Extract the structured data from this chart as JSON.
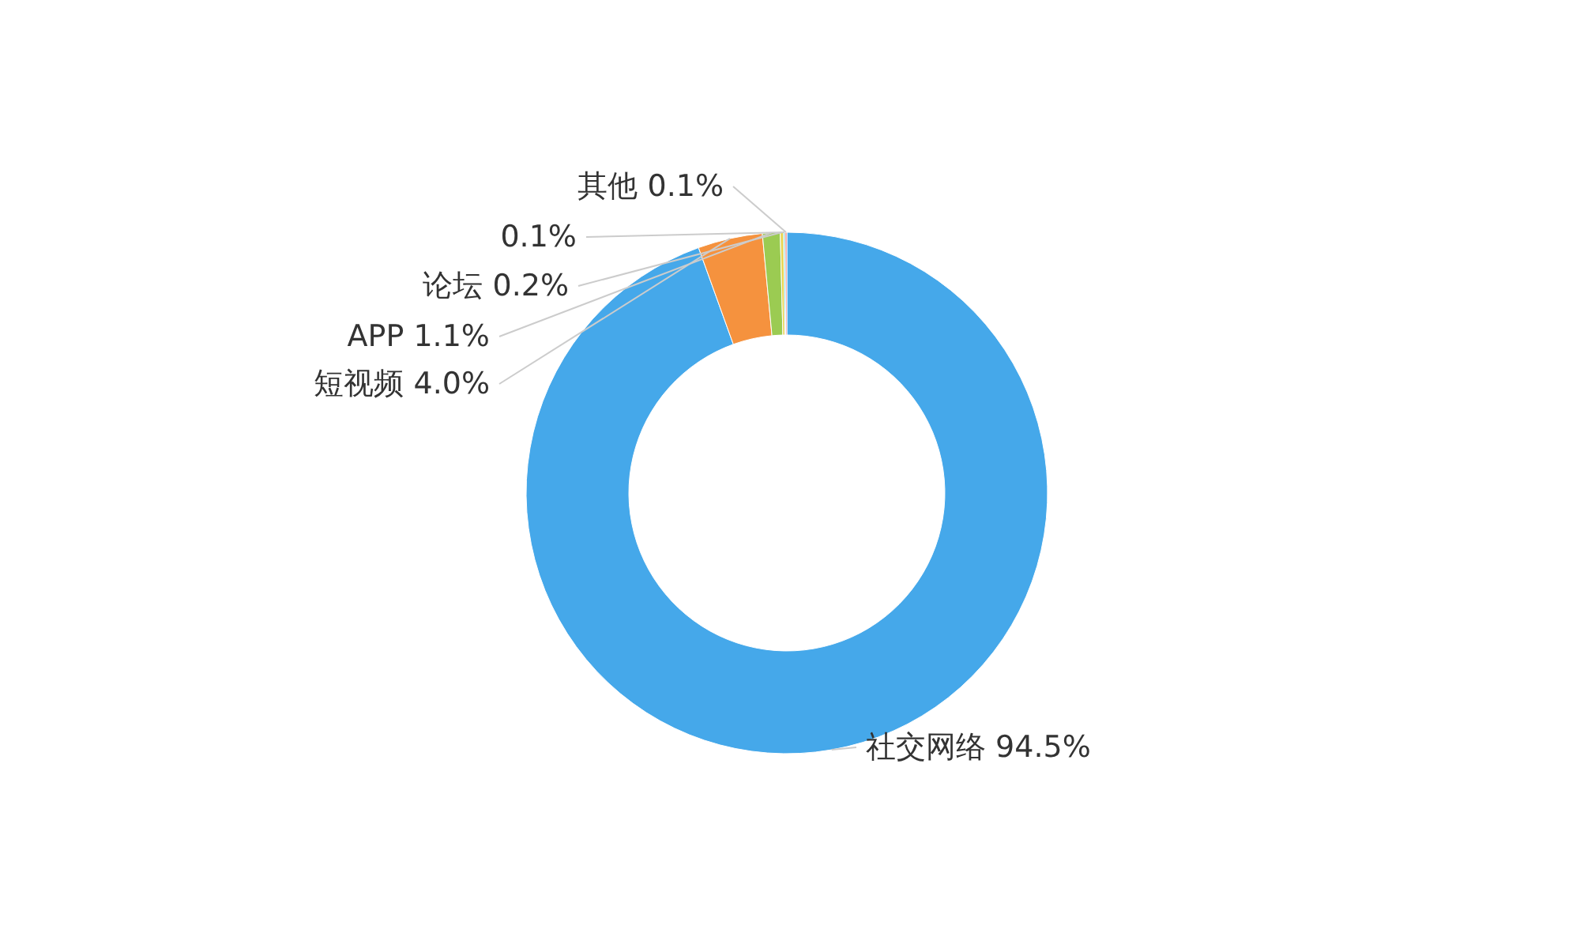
{
  "chart_data": {
    "type": "donut",
    "categories": [
      "社交网络",
      "短视频",
      "APP",
      "论坛",
      null,
      "其他"
    ],
    "values": [
      94.5,
      4.0,
      1.1,
      0.2,
      0.1,
      0.1
    ],
    "colors": [
      "#45a8ea",
      "#f5923e",
      "#9bcb52",
      "#e8d44d",
      "#5fd0c8",
      "#ee6666"
    ],
    "value_labels": [
      "94.5%",
      "4.0%",
      "1.1%",
      "0.2%",
      "0.1%",
      "0.1%"
    ]
  }
}
